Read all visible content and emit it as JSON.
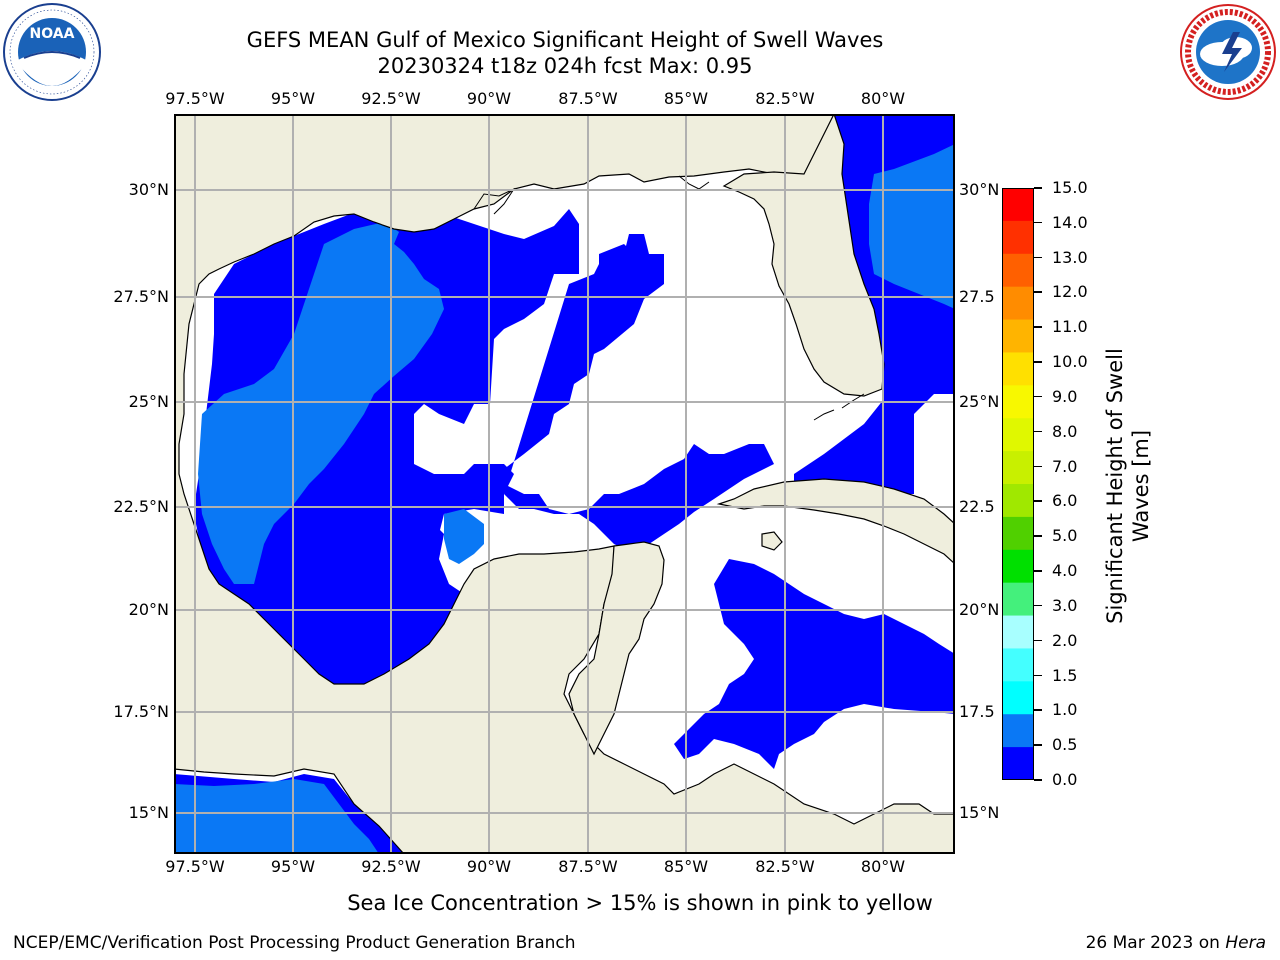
{
  "title": {
    "line1": "GEFS MEAN Gulf of Mexico Significant Height of Swell Waves",
    "line2": "20230324 t18z 024h fcst   Max: 0.95"
  },
  "logos": {
    "noaa": {
      "name": "noaa-logo",
      "text": "NOAA",
      "ring_text": "NATIONAL OCEANIC AND ATMOSPHERIC ADMINISTRATION · U.S. DEPARTMENT OF COMMERCE"
    },
    "nws": {
      "name": "nws-logo",
      "ring_text": "NATIONAL WEATHER SERVICE"
    }
  },
  "map": {
    "lon_ticks": [
      "97.5°W",
      "95°W",
      "92.5°W",
      "90°W",
      "87.5°W",
      "85°W",
      "82.5°W",
      "80°W"
    ],
    "lat_ticks_left": [
      "30°N",
      "27.5°N",
      "25°N",
      "22.5°N",
      "20°N",
      "17.5°N",
      "15°N"
    ],
    "lat_ticks_right": [
      "30°N",
      "27.5",
      "25°N",
      "22.5",
      "20°N",
      "17.5",
      "15°N"
    ],
    "colors": {
      "land": "#efeedd",
      "ocean_no_data": "#ffffff",
      "band_0_0_5": "#0000ff",
      "band_0_5_1_0": "#0a78f5",
      "grid": "#b0b0b0"
    }
  },
  "colorbar": {
    "label": "Significant Height of Swell Waves [m]",
    "tick_labels": [
      "15.0",
      "14.0",
      "13.0",
      "12.0",
      "11.0",
      "10.0",
      "9.0",
      "8.0",
      "7.0",
      "6.0",
      "5.0",
      "4.0",
      "3.0",
      "2.0",
      "1.5",
      "1.0",
      "0.5",
      "0.0"
    ],
    "band_colors": [
      "#ff0000",
      "#ff3000",
      "#ff6000",
      "#ff8c00",
      "#ffb400",
      "#ffe000",
      "#f8f800",
      "#e0f800",
      "#c8f000",
      "#a0e800",
      "#50d000",
      "#00e000",
      "#44f07c",
      "#a8ffff",
      "#44ffff",
      "#00ffff",
      "#0a78f5",
      "#0000ff"
    ]
  },
  "footer": {
    "note": "Sea Ice Concentration > 15% is shown in pink to yellow",
    "branch": "NCEP/EMC/Verification Post Processing Product Generation Branch",
    "date": "26 Mar 2023 on",
    "machine": "Hera"
  }
}
